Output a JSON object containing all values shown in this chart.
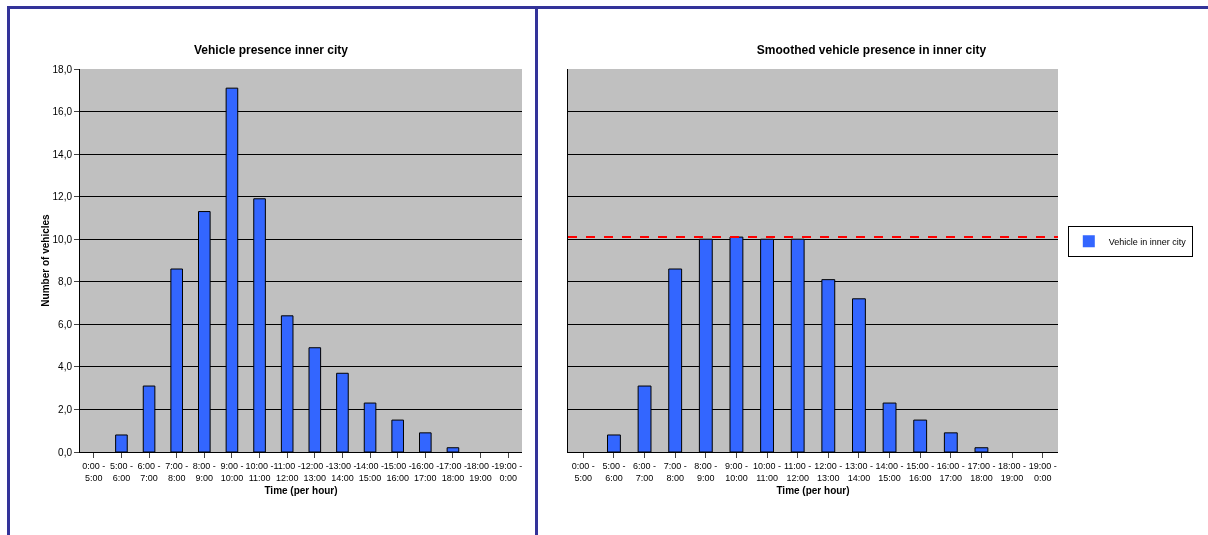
{
  "chart_data": [
    {
      "type": "bar",
      "title": "Vehicle presence inner city",
      "xlabel": "Time (per hour)",
      "ylabel": "Number of vehicles",
      "categories": [
        "0:00 - 5:00",
        "5:00 - 6:00",
        "6:00 - 7:00",
        "7:00 - 8:00",
        "8:00 - 9:00",
        "9:00 - 10:00",
        "10:00 - 11:00",
        "11:00 - 12:00",
        "12:00 - 13:00",
        "13:00 - 14:00",
        "14:00 - 15:00",
        "15:00 - 16:00",
        "16:00 - 17:00",
        "17:00 - 18:00",
        "18:00 - 19:00",
        "19:00 - 0:00"
      ],
      "values": [
        0,
        0.8,
        3.1,
        8.6,
        11.3,
        17.1,
        11.9,
        6.4,
        4.9,
        3.7,
        2.3,
        1.5,
        0.9,
        0.2,
        0,
        0
      ],
      "color": "#3366ff",
      "ylim": [
        0,
        18
      ],
      "yticks": [
        {
          "value": 0,
          "label": "0,0"
        },
        {
          "value": 2,
          "label": "2,0"
        },
        {
          "value": 4,
          "label": "4,0"
        },
        {
          "value": 6,
          "label": "6,0"
        },
        {
          "value": 8,
          "label": "8,0"
        },
        {
          "value": 10,
          "label": "10,0"
        },
        {
          "value": 12,
          "label": "12,0"
        },
        {
          "value": 14,
          "label": "14,0"
        },
        {
          "value": 16,
          "label": "16,0"
        },
        {
          "value": 18,
          "label": "18,0"
        }
      ],
      "grid": "y",
      "legend": false
    },
    {
      "type": "bar",
      "title": "Smoothed vehicle presence in inner city",
      "xlabel": "Time (per hour)",
      "categories": [
        "0:00 - 5:00",
        "5:00 - 6:00",
        "6:00 - 7:00",
        "7:00 - 8:00",
        "8:00 - 9:00",
        "9:00 - 10:00",
        "10:00 - 11:00",
        "11:00 - 12:00",
        "12:00 - 13:00",
        "13:00 - 14:00",
        "14:00 - 15:00",
        "15:00 - 16:00",
        "16:00 - 17:00",
        "17:00 - 18:00",
        "18:00 - 19:00",
        "19:00 - 0:00"
      ],
      "series": [
        {
          "name": "Vehicle in inner city",
          "color": "#3366ff",
          "values": [
            0,
            0.8,
            3.1,
            8.6,
            10.0,
            10.1,
            10.0,
            10.0,
            8.1,
            7.2,
            2.3,
            1.5,
            0.9,
            0.2,
            0,
            0
          ]
        }
      ],
      "ylim": [
        0,
        18
      ],
      "yticks": [
        {
          "value": 0,
          "label": null
        },
        {
          "value": 2,
          "label": null
        },
        {
          "value": 4,
          "label": null
        },
        {
          "value": 6,
          "label": null
        },
        {
          "value": 8,
          "label": null
        },
        {
          "value": 10,
          "label": null
        },
        {
          "value": 12,
          "label": null
        },
        {
          "value": 14,
          "label": null
        },
        {
          "value": 16,
          "label": null
        },
        {
          "value": 18,
          "label": null
        }
      ],
      "tick_labels": "x",
      "grid": "y",
      "legend": "right",
      "ref_lines": [
        {
          "axis": "y",
          "value": 10.1,
          "color": "#ff0000",
          "line_style": "dashed"
        }
      ]
    }
  ]
}
